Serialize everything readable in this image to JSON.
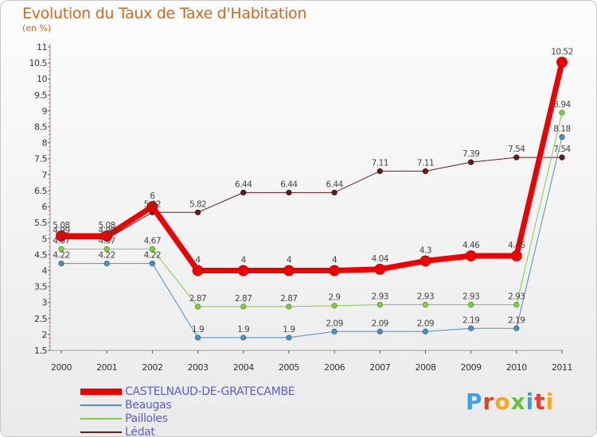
{
  "title": "Evolution du Taux de Taxe d'Habitation",
  "subtitle": "(en %)",
  "brand": {
    "text": "Proxiti",
    "colors": [
      "#3ca0e6",
      "#e8402a",
      "#f5a623",
      "#6cbf3a",
      "#3ca0e6",
      "#e8402a",
      "#f5a623"
    ]
  },
  "chart_data": {
    "type": "line",
    "x": [
      "2000",
      "2001",
      "2002",
      "2003",
      "2004",
      "2005",
      "2006",
      "2007",
      "2008",
      "2009",
      "2010",
      "2011"
    ],
    "ylim": [
      1.5,
      11
    ],
    "yticks": [
      "1.5",
      "2",
      "2.5",
      "3",
      "3.5",
      "4",
      "4.5",
      "5",
      "5.5",
      "6",
      "6.5",
      "7",
      "7.5",
      "8",
      "8.5",
      "9",
      "9.5",
      "10",
      "10.5",
      "11"
    ],
    "grid": false,
    "legend_position": "bottom-left",
    "series": [
      {
        "name": "CASTELNAUD-DE-GRATECAMBE",
        "color": "#ee0000",
        "values": [
          5.08,
          5.08,
          6,
          4,
          4,
          4,
          4,
          4.04,
          4.3,
          4.46,
          4.46,
          10.52
        ],
        "labels": [
          "5.08",
          "5.08",
          "6",
          "4",
          "4",
          "4",
          "4",
          "4.04",
          "4.3",
          "4.46",
          "4.46",
          "10.52"
        ]
      },
      {
        "name": "Beaugas",
        "color": "#4a90c0",
        "values": [
          4.22,
          4.22,
          4.22,
          1.9,
          1.9,
          1.9,
          2.09,
          2.09,
          2.09,
          2.19,
          2.19,
          8.18
        ],
        "labels": [
          "4.22",
          "4.22",
          "4.22",
          "1.9",
          "1.9",
          "1.9",
          "2.09",
          "2.09",
          "2.09",
          "2.19",
          "2.19",
          "8.18"
        ]
      },
      {
        "name": "Pailloles",
        "color": "#7fd040",
        "values": [
          4.67,
          4.67,
          4.67,
          2.87,
          2.87,
          2.87,
          2.9,
          2.93,
          2.93,
          2.93,
          2.93,
          8.94
        ],
        "labels": [
          "4.67",
          "4.67",
          "4.67",
          "2.87",
          "2.87",
          "2.87",
          "2.9",
          "2.93",
          "2.93",
          "2.93",
          "2.93",
          "8.94"
        ]
      },
      {
        "name": "Lédat",
        "color": "#6b1a1a",
        "values": [
          4.99,
          4.99,
          5.82,
          5.82,
          6.44,
          6.44,
          6.44,
          7.11,
          7.11,
          7.39,
          7.54,
          7.54
        ],
        "labels": [
          "4.99",
          "4.99",
          "5.82",
          "5.82",
          "6.44",
          "6.44",
          "6.44",
          "7.11",
          "7.11",
          "7.39",
          "7.54",
          "7.54"
        ]
      }
    ]
  }
}
